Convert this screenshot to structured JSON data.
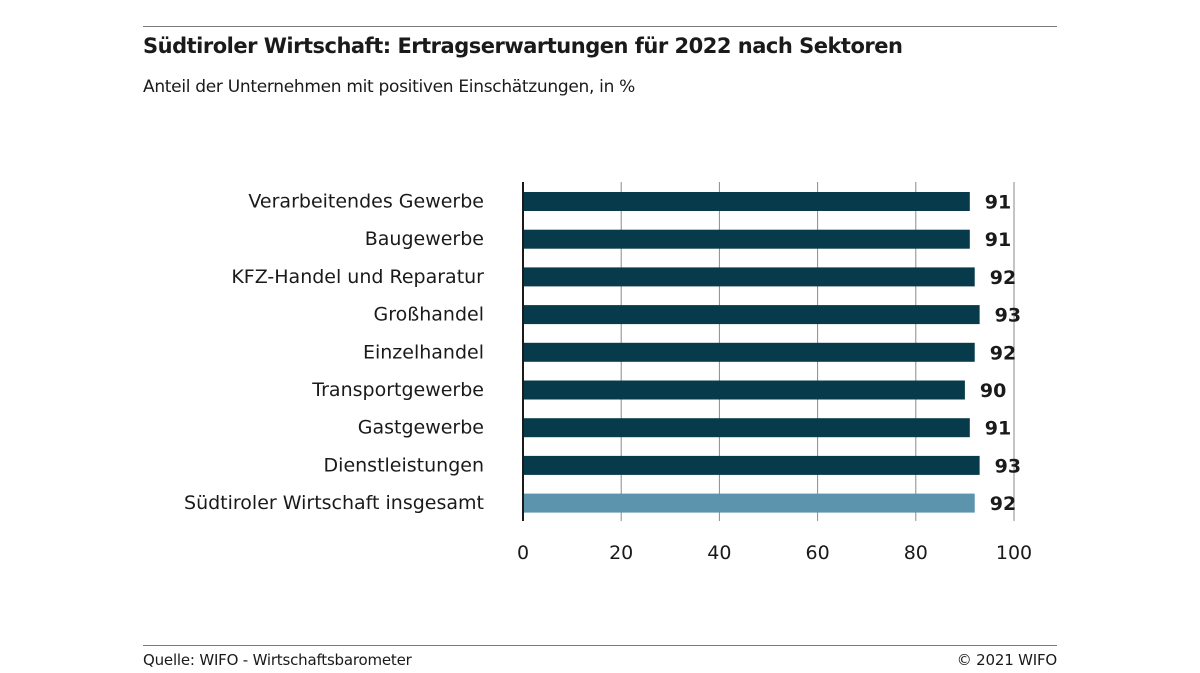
{
  "header": {
    "title": "Südtiroler Wirtschaft: Ertragserwartungen für 2022 nach Sektoren",
    "subtitle": "Anteil der Unternehmen mit positiven Einschätzungen, in %"
  },
  "footer": {
    "source": "Quelle: WIFO - Wirtschaftsbarometer",
    "copyright": "© 2021 WIFO"
  },
  "colors": {
    "bar_default": "#073b4c",
    "bar_highlight": "#5b94ac",
    "grid": "#8a8a8a",
    "axis": "#1a1a1a"
  },
  "chart_data": {
    "type": "bar",
    "orientation": "horizontal",
    "categories": [
      "Verarbeitendes Gewerbe",
      "Baugewerbe",
      "KFZ-Handel und Reparatur",
      "Großhandel",
      "Einzelhandel",
      "Transportgewerbe",
      "Gastgewerbe",
      "Dienstleistungen",
      "Südtiroler Wirtschaft insgesamt"
    ],
    "values": [
      91,
      91,
      92,
      93,
      92,
      90,
      91,
      93,
      92
    ],
    "data_labels": [
      "91",
      "91",
      "92",
      "93",
      "92",
      "90",
      "91",
      "93",
      "92"
    ],
    "highlight_index": 8,
    "xlim": [
      0,
      100
    ],
    "xticks": [
      0,
      20,
      40,
      60,
      80,
      100
    ],
    "xtick_labels": [
      "0",
      "20",
      "40",
      "60",
      "80",
      "100"
    ],
    "grid": true,
    "legend": false
  }
}
